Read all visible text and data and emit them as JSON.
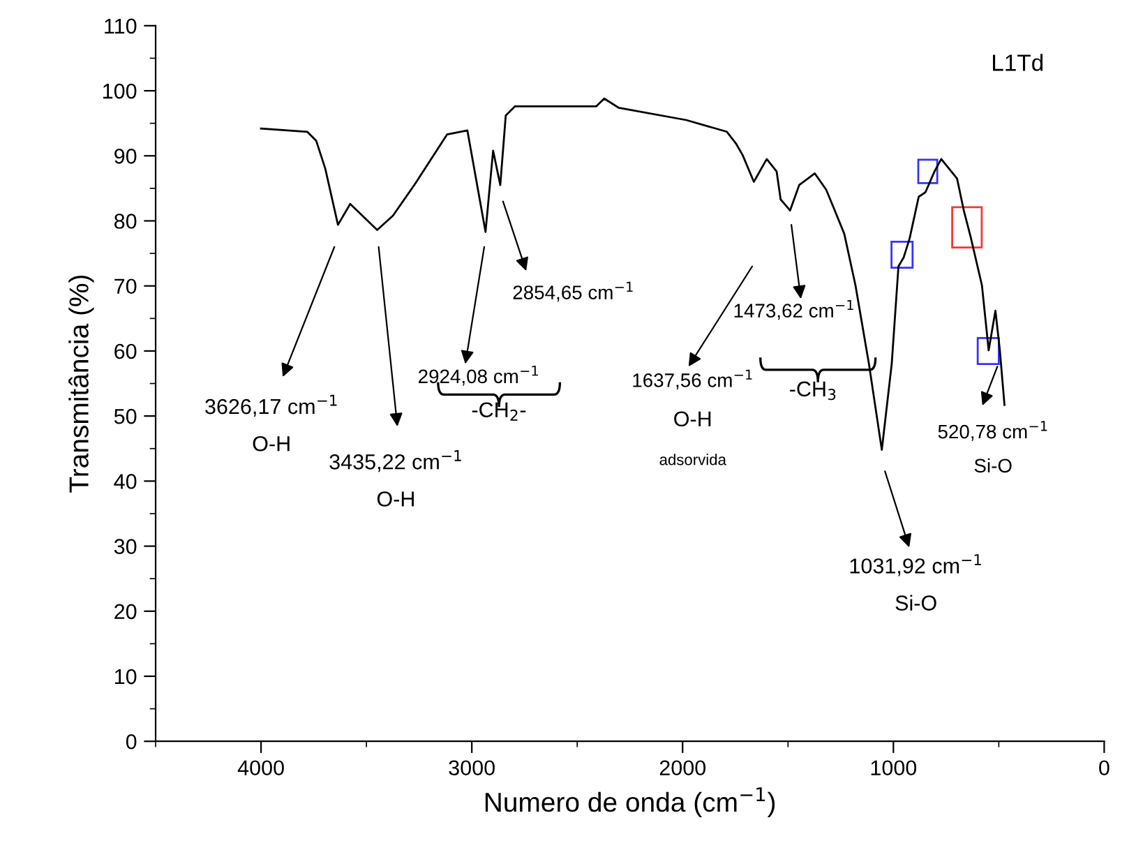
{
  "chart_data": {
    "type": "line",
    "title": "L1Td",
    "xlabel": "Numero de onda (cm$^{−1}$)",
    "ylabel": "Transmitância (%)",
    "x": [
      4000,
      3781,
      3738,
      3695,
      3635,
      3577,
      3449,
      3374,
      3267,
      3117,
      3021,
      2935,
      2899,
      2865,
      2839,
      2796,
      2410,
      2372,
      2304,
      1983,
      1790,
      1747,
      1715,
      1662,
      1601,
      1554,
      1535,
      1490,
      1447,
      1373,
      1319,
      1287,
      1233,
      1180,
      1116,
      1055,
      1008,
      976,
      951,
      923,
      880,
      848,
      805,
      773,
      698,
      666,
      634,
      580,
      548,
      516,
      495,
      473
    ],
    "series": [
      {
        "color": "#000000",
        "values": [
          94.2,
          93.7,
          92.3,
          88.0,
          79.4,
          82.6,
          78.6,
          80.8,
          85.8,
          93.3,
          93.9,
          78.3,
          90.8,
          85.5,
          96.2,
          97.6,
          97.6,
          98.8,
          97.4,
          95.5,
          93.7,
          91.9,
          90.1,
          86.0,
          89.5,
          87.6,
          83.3,
          81.6,
          85.5,
          87.3,
          84.8,
          82.3,
          78.0,
          70.1,
          58.0,
          44.8,
          58.0,
          73.0,
          74.4,
          77.3,
          83.7,
          84.4,
          87.6,
          89.5,
          86.5,
          81.6,
          77.6,
          70.1,
          60.1,
          66.2,
          60.1,
          51.7
        ]
      }
    ],
    "xlim": [
      4500,
      0
    ],
    "xticks": [
      4000,
      3000,
      2000,
      1000,
      0
    ],
    "ylim": [
      0,
      110
    ],
    "yticks": [
      0,
      10,
      20,
      30,
      40,
      50,
      60,
      70,
      80,
      90,
      100,
      110
    ],
    "grid": false,
    "annotations": [
      "3626,17 cm$^{−1}$",
      "O-H",
      "3435,22 cm$^{−1}$",
      "O-H",
      "2924,08 cm$^{−1}$",
      "2854,65 cm$^{−1}$",
      "-CH$_{2}$-",
      "1637,56 cm$^{−1}$",
      "O-H",
      "adsorvida",
      "1473,62 cm$^{−1}$",
      "-CH$_{3}$",
      "1031,92 cm$^{−1}$",
      "Si-O",
      "520,78 cm$^{−1}$",
      "Si-O"
    ]
  }
}
